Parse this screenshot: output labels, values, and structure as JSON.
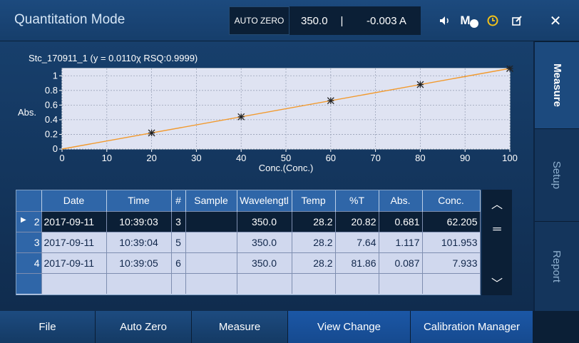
{
  "header": {
    "title": "Quantitation Mode",
    "auto_zero_label": "AUTO ZERO",
    "wavelength": "350.0",
    "separator": "|",
    "reading": "-0.003 A",
    "icons": [
      "speaker-icon",
      "mb-icon",
      "clock-icon",
      "edit-icon",
      "close-icon"
    ],
    "mb_label": "M"
  },
  "chart": {
    "caption": "Stc_170911_1 (y = 0.0110χ RSQ:0.9999)"
  },
  "chart_data": {
    "type": "scatter",
    "xlabel": "Conc.(Conc.)",
    "ylabel": "Abs.",
    "xlim": [
      0,
      100
    ],
    "ylim": [
      0,
      1.1
    ],
    "x_ticks": [
      "0",
      "10",
      "20",
      "30",
      "40",
      "50",
      "60",
      "70",
      "80",
      "90",
      "100"
    ],
    "y_ticks": [
      "0",
      "0.2",
      "0.4",
      "0.6",
      "0.8",
      "1"
    ],
    "grid": true,
    "points": [
      {
        "x": 20,
        "y": 0.22
      },
      {
        "x": 40,
        "y": 0.44
      },
      {
        "x": 60,
        "y": 0.66
      },
      {
        "x": 80,
        "y": 0.88
      },
      {
        "x": 100,
        "y": 1.1
      }
    ],
    "fit_line": {
      "x": [
        0,
        100
      ],
      "y": [
        0,
        1.1
      ]
    },
    "colors": {
      "line": "#f29a2e",
      "marker": "#222222",
      "plot_bg": "#dfe3f2"
    }
  },
  "table": {
    "headers": [
      "Date",
      "Time",
      "#",
      "Sample",
      "Wavelengtl",
      "Temp",
      "%T",
      "Abs.",
      "Conc."
    ],
    "rows": [
      {
        "idx": "2",
        "date": "2017-09-11",
        "time": "10:39:03",
        "num": "3",
        "sample": "",
        "wl": "350.0",
        "temp": "28.2",
        "t": "20.82",
        "abs": "0.681",
        "conc": "62.205"
      },
      {
        "idx": "3",
        "date": "2017-09-11",
        "time": "10:39:04",
        "num": "5",
        "sample": "",
        "wl": "350.0",
        "temp": "28.2",
        "t": "7.64",
        "abs": "1.117",
        "conc": "101.953"
      },
      {
        "idx": "4",
        "date": "2017-09-11",
        "time": "10:39:05",
        "num": "6",
        "sample": "",
        "wl": "350.0",
        "temp": "28.2",
        "t": "81.86",
        "abs": "0.087",
        "conc": "7.933"
      }
    ],
    "selected_marker": "▶"
  },
  "side_tabs": [
    "Measure",
    "Setup",
    "Report"
  ],
  "bottom_buttons": [
    "File",
    "Auto Zero",
    "Measure",
    "View Change",
    "Calibration Manager"
  ],
  "scroll": {
    "up": "︿",
    "mid": "═",
    "down": "﹀"
  }
}
